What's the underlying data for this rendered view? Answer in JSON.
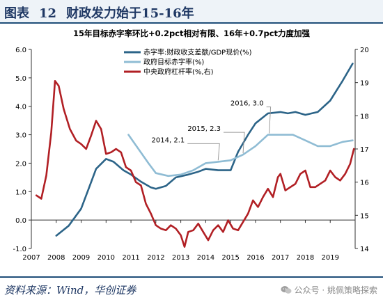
{
  "figure": {
    "label": "图表",
    "number": "12",
    "title": "财政发力始于15-16年"
  },
  "source": {
    "label": "资料来源",
    "text": "Wind，华创证券"
  },
  "watermark": {
    "text": "公众号 · 姚佩策略探索"
  },
  "chart_data": {
    "type": "line",
    "title": "15年目标赤字率环比+0.2pct相对有限、16年+0.7pct力度加强",
    "x_ticks": [
      "2007",
      "2008",
      "2009",
      "2010",
      "2011",
      "2012",
      "2013",
      "2014",
      "2015",
      "2016",
      "2017",
      "2018",
      "2019"
    ],
    "xlim": [
      2007,
      2020
    ],
    "y_left": {
      "ylim": [
        -1.0,
        6.0
      ],
      "ticks": [
        "-1.0",
        "0.0",
        "1.0",
        "2.0",
        "3.0",
        "4.0",
        "5.0",
        "6.0"
      ]
    },
    "y_right": {
      "ylim": [
        14,
        20
      ],
      "ticks": [
        "14",
        "15",
        "16",
        "17",
        "18",
        "19",
        "20"
      ]
    },
    "grid": false,
    "legend_position": "top-left",
    "series": [
      {
        "name": "赤字率:财政收支差额/GDP现价(%)",
        "axis": "left",
        "color": "#2c6488",
        "points": [
          [
            2008.0,
            -0.55
          ],
          [
            2008.5,
            -0.2
          ],
          [
            2009.0,
            0.4
          ],
          [
            2009.3,
            1.1
          ],
          [
            2009.6,
            1.8
          ],
          [
            2010.0,
            2.15
          ],
          [
            2010.3,
            2.05
          ],
          [
            2010.7,
            1.75
          ],
          [
            2011.0,
            1.6
          ],
          [
            2011.4,
            1.35
          ],
          [
            2011.8,
            1.15
          ],
          [
            2012.0,
            1.1
          ],
          [
            2012.4,
            1.2
          ],
          [
            2012.8,
            1.5
          ],
          [
            2013.3,
            1.6
          ],
          [
            2013.7,
            1.7
          ],
          [
            2014.0,
            1.8
          ],
          [
            2014.5,
            1.75
          ],
          [
            2015.0,
            1.75
          ],
          [
            2015.3,
            2.4
          ],
          [
            2015.7,
            3.0
          ],
          [
            2016.0,
            3.4
          ],
          [
            2016.5,
            3.75
          ],
          [
            2017.0,
            3.8
          ],
          [
            2017.3,
            3.75
          ],
          [
            2017.6,
            3.8
          ],
          [
            2018.0,
            3.7
          ],
          [
            2018.5,
            3.8
          ],
          [
            2019.0,
            4.2
          ],
          [
            2019.5,
            4.9
          ],
          [
            2019.9,
            5.5
          ]
        ]
      },
      {
        "name": "政府目标赤字率(%)",
        "axis": "left",
        "color": "#8fbcd4",
        "points": [
          [
            2010.9,
            3.0
          ],
          [
            2011.3,
            2.5
          ],
          [
            2011.7,
            2.0
          ],
          [
            2012.0,
            1.65
          ],
          [
            2012.5,
            1.55
          ],
          [
            2013.0,
            1.6
          ],
          [
            2013.5,
            1.75
          ],
          [
            2014.0,
            2.0
          ],
          [
            2014.5,
            2.05
          ],
          [
            2015.0,
            2.1
          ],
          [
            2015.5,
            2.3
          ],
          [
            2016.0,
            2.6
          ],
          [
            2016.5,
            3.0
          ],
          [
            2017.0,
            3.0
          ],
          [
            2017.5,
            3.0
          ],
          [
            2018.0,
            2.8
          ],
          [
            2018.5,
            2.6
          ],
          [
            2019.0,
            2.6
          ],
          [
            2019.5,
            2.75
          ],
          [
            2019.9,
            2.8
          ]
        ]
      },
      {
        "name": "中央政府杠杆率(%,右)",
        "axis": "right",
        "color": "#b11f24",
        "points": [
          [
            2007.2,
            15.6
          ],
          [
            2007.4,
            15.5
          ],
          [
            2007.6,
            16.2
          ],
          [
            2007.8,
            17.5
          ],
          [
            2007.95,
            19.05
          ],
          [
            2008.1,
            18.9
          ],
          [
            2008.3,
            18.2
          ],
          [
            2008.55,
            17.6
          ],
          [
            2008.8,
            17.25
          ],
          [
            2009.0,
            17.15
          ],
          [
            2009.2,
            17.0
          ],
          [
            2009.4,
            17.4
          ],
          [
            2009.6,
            17.85
          ],
          [
            2009.8,
            17.6
          ],
          [
            2010.0,
            16.85
          ],
          [
            2010.2,
            16.9
          ],
          [
            2010.4,
            17.0
          ],
          [
            2010.6,
            16.9
          ],
          [
            2010.8,
            16.45
          ],
          [
            2011.0,
            16.35
          ],
          [
            2011.2,
            16.0
          ],
          [
            2011.4,
            15.9
          ],
          [
            2011.6,
            15.35
          ],
          [
            2011.8,
            15.05
          ],
          [
            2012.0,
            14.7
          ],
          [
            2012.2,
            14.6
          ],
          [
            2012.4,
            14.55
          ],
          [
            2012.6,
            14.7
          ],
          [
            2012.8,
            14.6
          ],
          [
            2013.0,
            14.4
          ],
          [
            2013.15,
            14.05
          ],
          [
            2013.3,
            14.5
          ],
          [
            2013.5,
            14.55
          ],
          [
            2013.7,
            14.75
          ],
          [
            2013.9,
            14.5
          ],
          [
            2014.1,
            14.25
          ],
          [
            2014.3,
            14.55
          ],
          [
            2014.5,
            14.7
          ],
          [
            2014.7,
            14.5
          ],
          [
            2014.9,
            14.85
          ],
          [
            2015.1,
            14.6
          ],
          [
            2015.3,
            14.55
          ],
          [
            2015.5,
            14.8
          ],
          [
            2015.7,
            15.05
          ],
          [
            2015.9,
            15.45
          ],
          [
            2016.1,
            15.25
          ],
          [
            2016.3,
            15.55
          ],
          [
            2016.5,
            15.8
          ],
          [
            2016.7,
            15.55
          ],
          [
            2016.9,
            16.15
          ],
          [
            2017.0,
            16.25
          ],
          [
            2017.2,
            15.75
          ],
          [
            2017.4,
            15.85
          ],
          [
            2017.6,
            15.95
          ],
          [
            2017.8,
            16.25
          ],
          [
            2018.0,
            16.35
          ],
          [
            2018.2,
            15.85
          ],
          [
            2018.4,
            15.85
          ],
          [
            2018.6,
            15.95
          ],
          [
            2018.8,
            16.05
          ],
          [
            2019.0,
            16.35
          ],
          [
            2019.2,
            16.15
          ],
          [
            2019.4,
            16.05
          ],
          [
            2019.6,
            16.25
          ],
          [
            2019.8,
            16.55
          ],
          [
            2019.95,
            17.0
          ]
        ]
      }
    ],
    "annotations": [
      {
        "text": "2016, 3.0",
        "x": 2016.55,
        "y": 3.0
      },
      {
        "text": "2015, 2.3",
        "x": 2015.5,
        "y": 2.3
      },
      {
        "text": "2014, 2.1",
        "x": 2014.5,
        "y": 2.05
      }
    ]
  }
}
